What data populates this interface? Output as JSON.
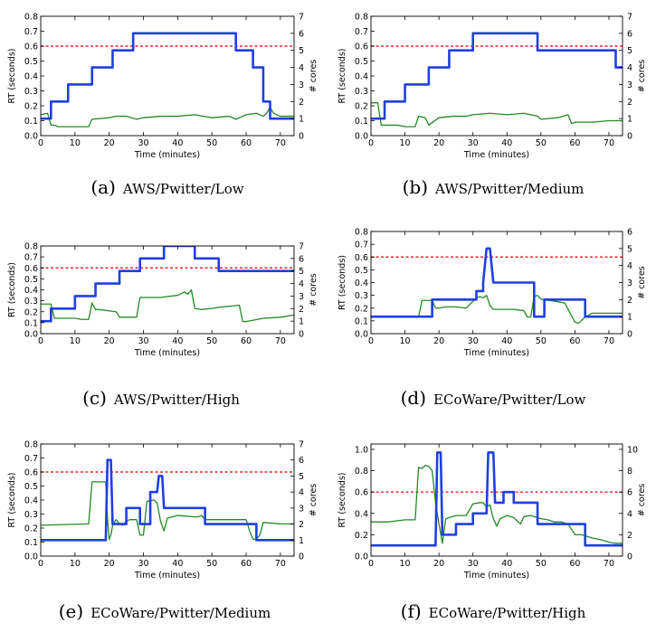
{
  "chart_data": [
    {
      "type": "line",
      "panel_letter": "(a)",
      "caption": "AWS/Pwitter/Low",
      "xlabel": "Time (minutes)",
      "ylabel": "RT (seconds)",
      "ylabel_right": "# cores",
      "xlim": [
        0,
        74
      ],
      "ylim": [
        0,
        0.8
      ],
      "ylim_right": [
        0,
        7
      ],
      "xticks": [
        0,
        10,
        20,
        30,
        40,
        50,
        60,
        70
      ],
      "yticks": [
        0.0,
        0.1,
        0.2,
        0.3,
        0.4,
        0.5,
        0.6,
        0.7,
        0.8
      ],
      "yticks_right": [
        0,
        1,
        2,
        3,
        4,
        5,
        6,
        7
      ],
      "threshold": 0.6,
      "series": [
        {
          "axis": "left",
          "color": "#228B22",
          "x": [
            0,
            2,
            3,
            4,
            5,
            8,
            10,
            14,
            15,
            20,
            22,
            25,
            28,
            30,
            35,
            40,
            45,
            50,
            55,
            57,
            60,
            63,
            65,
            66,
            67,
            68,
            70,
            74
          ],
          "y": [
            0.14,
            0.15,
            0.07,
            0.07,
            0.06,
            0.06,
            0.06,
            0.06,
            0.11,
            0.12,
            0.13,
            0.13,
            0.11,
            0.12,
            0.13,
            0.13,
            0.14,
            0.12,
            0.13,
            0.11,
            0.14,
            0.15,
            0.13,
            0.15,
            0.19,
            0.15,
            0.13,
            0.13
          ]
        },
        {
          "axis": "right",
          "color": "#1f3fe0",
          "x": [
            0,
            3,
            3,
            8,
            8,
            15,
            15,
            21,
            21,
            27,
            27,
            57,
            57,
            62,
            62,
            65,
            65,
            67,
            67,
            74
          ],
          "y": [
            1,
            1,
            2,
            2,
            3,
            3,
            4,
            4,
            5,
            5,
            6,
            6,
            5,
            5,
            4,
            4,
            2,
            2,
            1,
            1
          ]
        }
      ]
    },
    {
      "type": "line",
      "panel_letter": "(b)",
      "caption": "AWS/Pwitter/Medium",
      "xlabel": "Time (minutes)",
      "ylabel": "RT (seconds)",
      "ylabel_right": "# cores",
      "xlim": [
        0,
        74
      ],
      "ylim": [
        0,
        0.8
      ],
      "ylim_right": [
        0,
        7
      ],
      "xticks": [
        0,
        10,
        20,
        30,
        40,
        50,
        60,
        70
      ],
      "yticks": [
        0.0,
        0.1,
        0.2,
        0.3,
        0.4,
        0.5,
        0.6,
        0.7,
        0.8
      ],
      "yticks_right": [
        0,
        1,
        2,
        3,
        4,
        5,
        6,
        7
      ],
      "threshold": 0.6,
      "series": [
        {
          "axis": "left",
          "color": "#228B22",
          "x": [
            0,
            2,
            3,
            4,
            8,
            10,
            13,
            14,
            16,
            17,
            20,
            24,
            28,
            30,
            35,
            40,
            45,
            49,
            50,
            55,
            58,
            59,
            60,
            65,
            70,
            74
          ],
          "y": [
            0.22,
            0.22,
            0.07,
            0.07,
            0.07,
            0.06,
            0.06,
            0.13,
            0.12,
            0.07,
            0.12,
            0.13,
            0.13,
            0.14,
            0.15,
            0.14,
            0.15,
            0.13,
            0.11,
            0.12,
            0.14,
            0.08,
            0.09,
            0.09,
            0.1,
            0.1
          ]
        },
        {
          "axis": "right",
          "color": "#1f3fe0",
          "x": [
            0,
            4,
            4,
            10,
            10,
            17,
            17,
            23,
            23,
            30,
            30,
            49,
            49,
            72,
            72,
            74
          ],
          "y": [
            1,
            1,
            2,
            2,
            3,
            3,
            4,
            4,
            5,
            5,
            6,
            6,
            5,
            5,
            4,
            4
          ]
        }
      ]
    },
    {
      "type": "line",
      "panel_letter": "(c)",
      "caption": "AWS/Pwitter/High",
      "xlabel": "Time (minutes)",
      "ylabel": "RT (seconds)",
      "ylabel_right": "# cores",
      "xlim": [
        0,
        74
      ],
      "ylim": [
        0,
        0.8
      ],
      "ylim_right": [
        0,
        7
      ],
      "xticks": [
        0,
        10,
        20,
        30,
        40,
        50,
        60,
        70
      ],
      "yticks": [
        0.0,
        0.1,
        0.2,
        0.3,
        0.4,
        0.5,
        0.6,
        0.7,
        0.8
      ],
      "yticks_right": [
        0,
        1,
        2,
        3,
        4,
        5,
        6,
        7
      ],
      "threshold": 0.6,
      "series": [
        {
          "axis": "left",
          "color": "#228B22",
          "x": [
            0,
            3,
            4,
            10,
            12,
            14,
            15,
            16,
            17,
            22,
            23,
            26,
            28,
            29,
            35,
            40,
            42,
            43,
            44,
            45,
            47,
            50,
            52,
            55,
            58,
            59,
            60,
            65,
            70,
            74
          ],
          "y": [
            0.27,
            0.27,
            0.14,
            0.14,
            0.13,
            0.13,
            0.28,
            0.22,
            0.22,
            0.2,
            0.15,
            0.15,
            0.15,
            0.33,
            0.33,
            0.35,
            0.38,
            0.36,
            0.4,
            0.23,
            0.22,
            0.23,
            0.24,
            0.25,
            0.26,
            0.11,
            0.11,
            0.14,
            0.15,
            0.17
          ]
        },
        {
          "axis": "right",
          "color": "#1f3fe0",
          "x": [
            0,
            3,
            3,
            10,
            10,
            16,
            16,
            23,
            23,
            29,
            29,
            36,
            36,
            45,
            45,
            52,
            52,
            74
          ],
          "y": [
            1,
            1,
            2,
            2,
            3,
            3,
            4,
            4,
            5,
            5,
            6,
            6,
            7,
            7,
            6,
            6,
            5,
            5
          ]
        }
      ]
    },
    {
      "type": "line",
      "panel_letter": "(d)",
      "caption": "ECoWare/Pwitter/Low",
      "xlabel": "Time (minutes)",
      "ylabel": "RT (seconds)",
      "ylabel_right": "# cores",
      "xlim": [
        0,
        74
      ],
      "ylim": [
        0,
        0.8
      ],
      "ylim_right": [
        0,
        6
      ],
      "xticks": [
        0,
        10,
        20,
        30,
        40,
        50,
        60,
        70
      ],
      "yticks": [
        0.0,
        0.1,
        0.2,
        0.3,
        0.4,
        0.5,
        0.6,
        0.7,
        0.8
      ],
      "yticks_right": [
        0,
        1,
        2,
        3,
        4,
        5,
        6
      ],
      "threshold": 0.6,
      "series": [
        {
          "axis": "left",
          "color": "#228B22",
          "x": [
            0,
            14,
            15,
            18,
            19,
            20,
            22,
            25,
            28,
            31,
            32,
            33,
            34,
            35,
            36,
            37,
            38,
            40,
            42,
            45,
            46,
            47,
            48,
            49,
            50,
            55,
            57,
            60,
            61,
            63,
            65,
            70,
            74
          ],
          "y": [
            0.13,
            0.13,
            0.26,
            0.26,
            0.2,
            0.2,
            0.21,
            0.21,
            0.2,
            0.28,
            0.29,
            0.28,
            0.3,
            0.22,
            0.19,
            0.19,
            0.19,
            0.19,
            0.19,
            0.18,
            0.13,
            0.13,
            0.29,
            0.3,
            0.27,
            0.25,
            0.24,
            0.09,
            0.08,
            0.13,
            0.16,
            0.16,
            0.16
          ]
        },
        {
          "axis": "right",
          "color": "#1f3fe0",
          "x": [
            0,
            18,
            18,
            31,
            31,
            33,
            33,
            34,
            35,
            36,
            36,
            48,
            48,
            51,
            51,
            63,
            63,
            74
          ],
          "y": [
            1,
            1,
            2,
            2,
            2.5,
            2.5,
            3,
            5,
            5,
            3,
            3,
            3,
            1,
            1,
            2,
            2,
            1,
            1
          ]
        }
      ]
    },
    {
      "type": "line",
      "panel_letter": "(e)",
      "caption": "ECoWare/Pwitter/Medium",
      "xlabel": "Time (minutes)",
      "ylabel": "RT (seconds)",
      "ylabel_right": "# cores",
      "xlim": [
        0,
        74
      ],
      "ylim": [
        0,
        0.8
      ],
      "ylim_right": [
        0,
        7
      ],
      "xticks": [
        0,
        10,
        20,
        30,
        40,
        50,
        60,
        70
      ],
      "yticks": [
        0.0,
        0.1,
        0.2,
        0.3,
        0.4,
        0.5,
        0.6,
        0.7,
        0.8
      ],
      "yticks_right": [
        0,
        1,
        2,
        3,
        4,
        5,
        6,
        7
      ],
      "threshold": 0.6,
      "series": [
        {
          "axis": "left",
          "color": "#228B22",
          "x": [
            0,
            14,
            15,
            19,
            19.5,
            20,
            20.5,
            21,
            22,
            23,
            24,
            25,
            26,
            28,
            29,
            30,
            31,
            33,
            34,
            35,
            36,
            37,
            40,
            45,
            46,
            47,
            48,
            49,
            50,
            55,
            60,
            61,
            62,
            63,
            64,
            65,
            70,
            74
          ],
          "y": [
            0.22,
            0.23,
            0.53,
            0.53,
            0.27,
            0.12,
            0.15,
            0.22,
            0.26,
            0.23,
            0.22,
            0.25,
            0.26,
            0.26,
            0.15,
            0.15,
            0.39,
            0.4,
            0.38,
            0.25,
            0.18,
            0.27,
            0.29,
            0.28,
            0.28,
            0.29,
            0.26,
            0.26,
            0.26,
            0.26,
            0.26,
            0.18,
            0.12,
            0.12,
            0.15,
            0.24,
            0.23,
            0.23
          ]
        },
        {
          "axis": "right",
          "color": "#1f3fe0",
          "x": [
            0,
            19,
            19.5,
            20.5,
            21,
            25,
            25,
            29,
            29,
            32,
            32,
            34,
            34.5,
            35.5,
            36,
            48,
            48,
            63,
            63,
            74
          ],
          "y": [
            1,
            1,
            6,
            6,
            2,
            2,
            3,
            3,
            2,
            2,
            4,
            4,
            5,
            5,
            3,
            3,
            2,
            2,
            1,
            1
          ]
        }
      ]
    },
    {
      "type": "line",
      "panel_letter": "(f)",
      "caption": "ECoWare/Pwitter/High",
      "xlabel": "Time (minutes)",
      "ylabel": "RT (seconds)",
      "ylabel_right": "# cores",
      "xlim": [
        0,
        74
      ],
      "ylim": [
        0,
        1.05
      ],
      "ylim_right": [
        0,
        10.5
      ],
      "xticks": [
        0,
        10,
        20,
        30,
        40,
        50,
        60,
        70
      ],
      "yticks": [
        0.0,
        0.2,
        0.4,
        0.6,
        0.8,
        1.0
      ],
      "yticks_right": [
        0,
        2,
        4,
        6,
        8,
        10
      ],
      "threshold": 0.6,
      "series": [
        {
          "axis": "left",
          "color": "#228B22",
          "x": [
            0,
            5,
            10,
            13,
            14,
            15,
            16,
            17,
            18,
            19,
            20,
            21,
            22,
            25,
            28,
            30,
            32,
            33,
            34,
            35,
            36,
            37,
            38,
            40,
            42,
            44,
            45,
            47,
            50,
            52,
            54,
            56,
            58,
            60,
            62,
            65,
            68,
            70,
            72,
            74
          ],
          "y": [
            0.32,
            0.32,
            0.34,
            0.34,
            0.83,
            0.82,
            0.85,
            0.84,
            0.8,
            0.5,
            0.3,
            0.12,
            0.35,
            0.38,
            0.38,
            0.49,
            0.5,
            0.5,
            0.46,
            0.48,
            0.35,
            0.28,
            0.35,
            0.38,
            0.36,
            0.3,
            0.37,
            0.38,
            0.35,
            0.34,
            0.32,
            0.32,
            0.3,
            0.2,
            0.2,
            0.17,
            0.15,
            0.13,
            0.12,
            0.12
          ]
        },
        {
          "axis": "right",
          "color": "#1f3fe0",
          "x": [
            0,
            19,
            19.5,
            20.5,
            21,
            25,
            25,
            30,
            30,
            34,
            34.5,
            36,
            36.5,
            39,
            39,
            42,
            42,
            49,
            49,
            63,
            63,
            74
          ],
          "y": [
            1,
            1,
            9.7,
            9.7,
            2,
            2,
            3,
            3,
            4,
            4,
            9.7,
            9.7,
            5,
            5,
            6,
            6,
            5,
            5,
            3,
            3,
            1,
            1
          ]
        }
      ]
    }
  ]
}
